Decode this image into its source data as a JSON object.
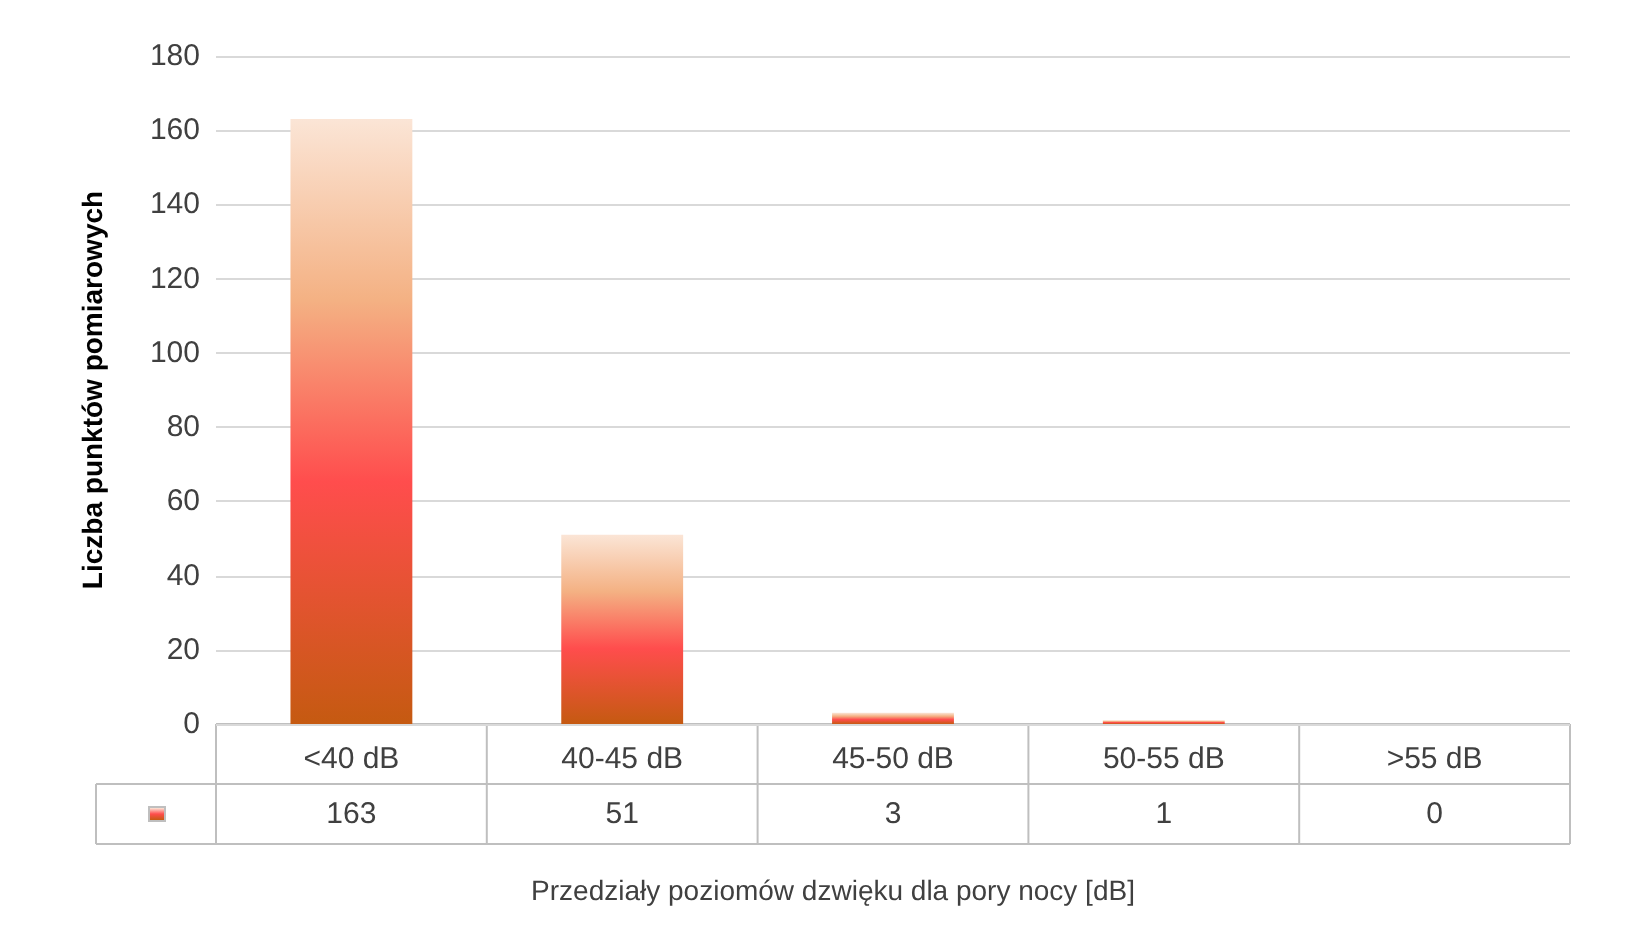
{
  "chart_data": {
    "type": "bar",
    "xlabel": "Przedziały poziomów dzwięku dla pory nocy [dB]",
    "ylabel": "Liczba punktów pomiarowych",
    "categories": [
      "<40 dB",
      "40-45 dB",
      "45-50 dB",
      "50-55 dB",
      ">55 dB"
    ],
    "series": [
      {
        "color": "#ff4d4d",
        "values": [
          163,
          51,
          3,
          1,
          0
        ]
      }
    ],
    "ylim": [
      0,
      180
    ],
    "yticks": [
      0,
      20,
      40,
      60,
      80,
      100,
      120,
      140,
      160,
      180
    ],
    "grid": "y",
    "data_labels": true
  }
}
